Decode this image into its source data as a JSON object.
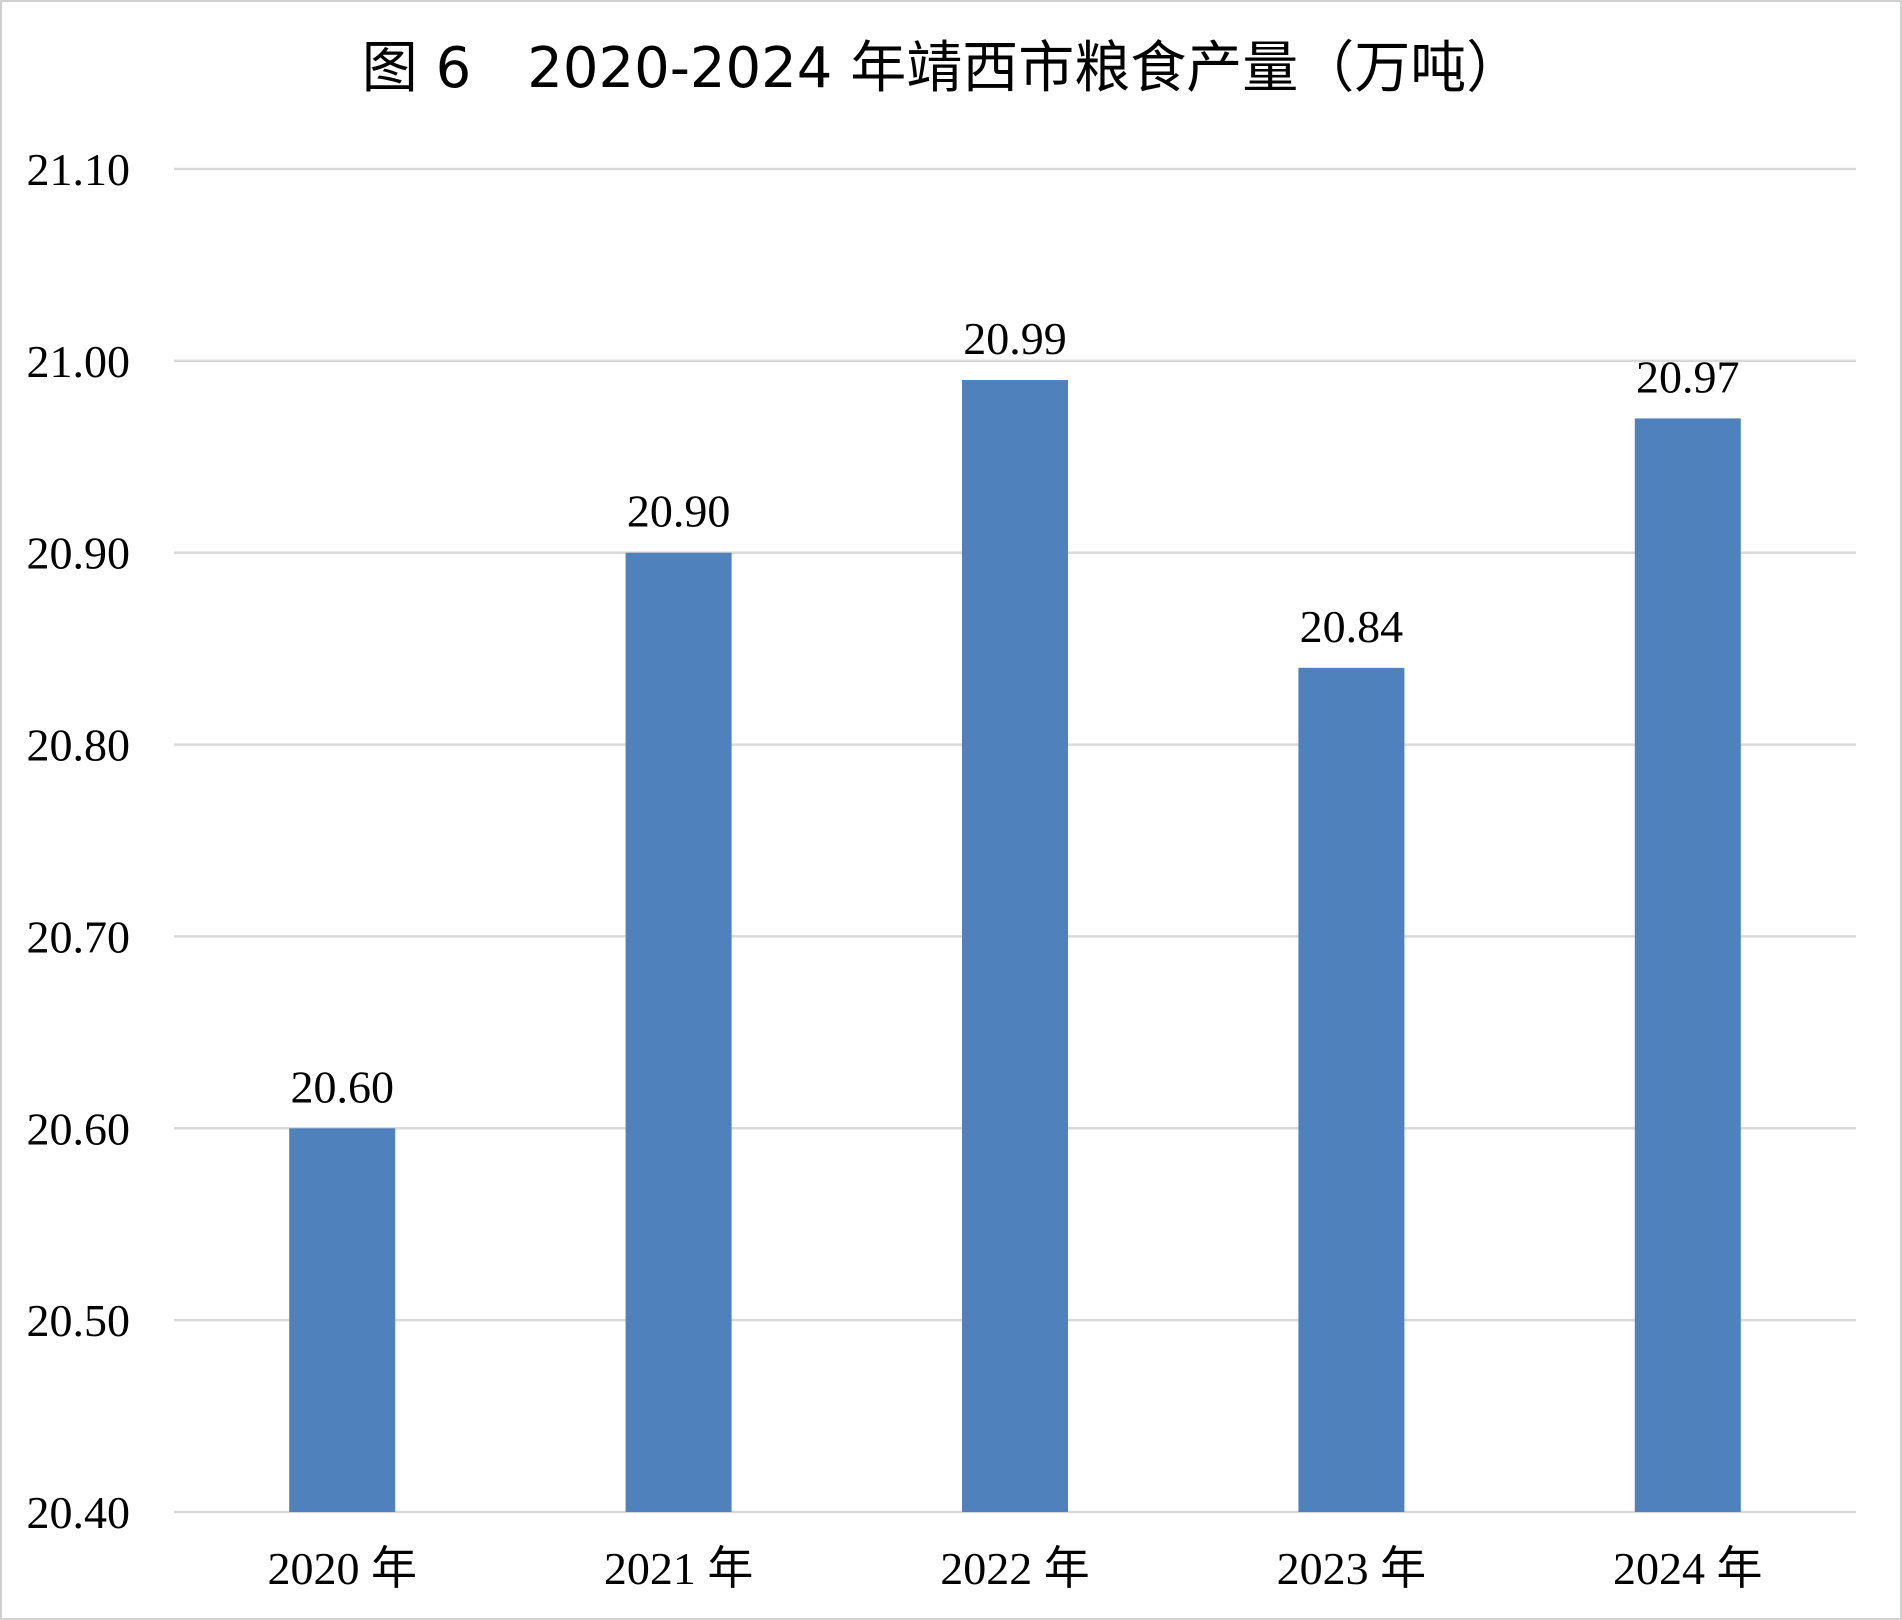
{
  "chart_data": {
    "type": "bar",
    "title": "图 6　2020-2024 年靖西市粮食产量（万吨）",
    "categories": [
      "2020 年",
      "2021 年",
      "2022 年",
      "2023 年",
      "2024 年"
    ],
    "values": [
      20.6,
      20.9,
      20.99,
      20.84,
      20.97
    ],
    "data_labels": [
      "20.60",
      "20.90",
      "20.99",
      "20.84",
      "20.97"
    ],
    "xlabel": "",
    "ylabel": "",
    "ylim": [
      20.4,
      21.1
    ],
    "yticks": [
      20.4,
      20.5,
      20.6,
      20.7,
      20.8,
      20.9,
      21.0,
      21.1
    ],
    "ytick_labels": [
      "20.40",
      "20.50",
      "20.60",
      "20.70",
      "20.80",
      "20.90",
      "21.00",
      "21.10"
    ],
    "grid": true,
    "legend": "none",
    "bar_color": "#4F81BD",
    "grid_color": "#D9D9D9"
  }
}
